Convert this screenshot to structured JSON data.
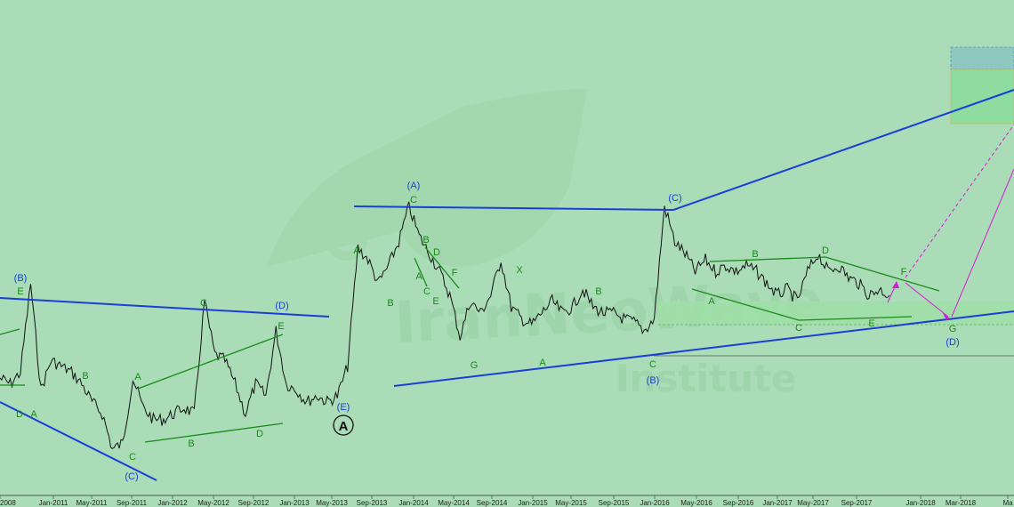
{
  "chart_data": {
    "type": "line",
    "title": "",
    "xlabel": "",
    "ylabel": "",
    "grid": false,
    "colors": {
      "background": "#a9dcb7",
      "price": "#111111",
      "major_wave": "#1a3fd6",
      "minor_wave": "#1a8a1a",
      "projection": "#d61ad6",
      "target_zone": "#8fdca0",
      "target_zone_top": "#8fc8c0"
    },
    "x_ticks": [
      "2008",
      "Jan-2011",
      "May-2011",
      "Sep-2011",
      "Jan-2012",
      "May-2012",
      "Sep-2012",
      "Jan-2013",
      "May-2013",
      "Sep-2013",
      "Jan-2014",
      "May-2014",
      "Sep-2014",
      "Jan-2015",
      "May-2015",
      "Sep-2015",
      "Jan-2016",
      "May-2016",
      "Sep-2016",
      "Jan-2017",
      "May-2017",
      "Sep-2017",
      "Jan-2018",
      "Mar-2018",
      "Ma"
    ],
    "price_path": [
      {
        "x": "Sep-2010",
        "y": 0.42
      },
      {
        "x": "Oct-2010",
        "y": 0.4
      },
      {
        "x": "Nov-2010",
        "y": 0.44
      },
      {
        "x": "Dec-2010",
        "y": 0.74
      },
      {
        "x": "Jan-2011",
        "y": 0.38
      },
      {
        "x": "Feb-2011",
        "y": 0.48
      },
      {
        "x": "Mar-2011",
        "y": 0.46
      },
      {
        "x": "Apr-2011",
        "y": 0.44
      },
      {
        "x": "May-2011",
        "y": 0.4
      },
      {
        "x": "Jun-2011",
        "y": 0.34
      },
      {
        "x": "Jul-2011",
        "y": 0.3
      },
      {
        "x": "Aug-2011",
        "y": 0.18
      },
      {
        "x": "Sep-2011",
        "y": 0.2
      },
      {
        "x": "Oct-2011",
        "y": 0.42
      },
      {
        "x": "Nov-2011",
        "y": 0.32
      },
      {
        "x": "Dec-2011",
        "y": 0.28
      },
      {
        "x": "Jan-2012",
        "y": 0.28
      },
      {
        "x": "Feb-2012",
        "y": 0.3
      },
      {
        "x": "Mar-2012",
        "y": 0.32
      },
      {
        "x": "Apr-2012",
        "y": 0.3
      },
      {
        "x": "May-2012",
        "y": 0.68
      },
      {
        "x": "Jun-2012",
        "y": 0.5
      },
      {
        "x": "Jul-2012",
        "y": 0.48
      },
      {
        "x": "Aug-2012",
        "y": 0.4
      },
      {
        "x": "Sep-2012",
        "y": 0.3
      },
      {
        "x": "Oct-2012",
        "y": 0.4
      },
      {
        "x": "Nov-2012",
        "y": 0.36
      },
      {
        "x": "Dec-2012",
        "y": 0.58
      },
      {
        "x": "Jan-2013",
        "y": 0.4
      },
      {
        "x": "Feb-2013",
        "y": 0.38
      },
      {
        "x": "Mar-2013",
        "y": 0.34
      },
      {
        "x": "Apr-2013",
        "y": 0.36
      },
      {
        "x": "May-2013",
        "y": 0.34
      },
      {
        "x": "Jun-2013",
        "y": 0.36
      },
      {
        "x": "Jul-2013",
        "y": 0.46
      },
      {
        "x": "Aug-2013",
        "y": 0.86
      },
      {
        "x": "Sep-2013",
        "y": 0.82
      },
      {
        "x": "Oct-2013",
        "y": 0.74
      },
      {
        "x": "Nov-2013",
        "y": 0.8
      },
      {
        "x": "Dec-2013",
        "y": 0.88
      },
      {
        "x": "Jan-2014",
        "y": 1.0
      },
      {
        "x": "Feb-2014",
        "y": 0.9
      },
      {
        "x": "Mar-2014",
        "y": 0.84
      },
      {
        "x": "Apr-2014",
        "y": 0.78
      },
      {
        "x": "May-2014",
        "y": 0.7
      },
      {
        "x": "Jun-2014",
        "y": 0.56
      },
      {
        "x": "Jul-2014",
        "y": 0.68
      },
      {
        "x": "Aug-2014",
        "y": 0.64
      },
      {
        "x": "Sep-2014",
        "y": 0.7
      },
      {
        "x": "Oct-2014",
        "y": 0.82
      },
      {
        "x": "Nov-2014",
        "y": 0.66
      },
      {
        "x": "Dec-2014",
        "y": 0.62
      },
      {
        "x": "Jan-2015",
        "y": 0.6
      },
      {
        "x": "Feb-2015",
        "y": 0.64
      },
      {
        "x": "Mar-2015",
        "y": 0.68
      },
      {
        "x": "Apr-2015",
        "y": 0.64
      },
      {
        "x": "May-2015",
        "y": 0.66
      },
      {
        "x": "Jun-2015",
        "y": 0.72
      },
      {
        "x": "Jul-2015",
        "y": 0.66
      },
      {
        "x": "Aug-2015",
        "y": 0.64
      },
      {
        "x": "Sep-2015",
        "y": 0.64
      },
      {
        "x": "Oct-2015",
        "y": 0.62
      },
      {
        "x": "Nov-2015",
        "y": 0.61
      },
      {
        "x": "Dec-2015",
        "y": 0.58
      },
      {
        "x": "Jan-2016",
        "y": 0.62
      },
      {
        "x": "Feb-2016",
        "y": 1.0
      },
      {
        "x": "Mar-2016",
        "y": 0.88
      },
      {
        "x": "Apr-2016",
        "y": 0.84
      },
      {
        "x": "May-2016",
        "y": 0.78
      },
      {
        "x": "Jun-2016",
        "y": 0.82
      },
      {
        "x": "Jul-2016",
        "y": 0.78
      },
      {
        "x": "Aug-2016",
        "y": 0.8
      },
      {
        "x": "Sep-2016",
        "y": 0.78
      },
      {
        "x": "Oct-2016",
        "y": 0.8
      },
      {
        "x": "Nov-2016",
        "y": 0.78
      },
      {
        "x": "Dec-2016",
        "y": 0.74
      },
      {
        "x": "Jan-2017",
        "y": 0.7
      },
      {
        "x": "Feb-2017",
        "y": 0.72
      },
      {
        "x": "Mar-2017",
        "y": 0.68
      },
      {
        "x": "Apr-2017",
        "y": 0.78
      },
      {
        "x": "May-2017",
        "y": 0.84
      },
      {
        "x": "Jun-2017",
        "y": 0.78
      },
      {
        "x": "Jul-2017",
        "y": 0.8
      },
      {
        "x": "Aug-2017",
        "y": 0.76
      },
      {
        "x": "Sep-2017",
        "y": 0.74
      },
      {
        "x": "Oct-2017",
        "y": 0.7
      },
      {
        "x": "Nov-2017",
        "y": 0.72
      },
      {
        "x": "Dec-2017",
        "y": 0.7
      }
    ],
    "wave_labels": [
      {
        "text": "(B)",
        "kind": "major"
      },
      {
        "text": "E",
        "kind": "minor"
      },
      {
        "text": "D",
        "kind": "minor"
      },
      {
        "text": "A",
        "kind": "minor"
      },
      {
        "text": "B",
        "kind": "minor"
      },
      {
        "text": "A",
        "kind": "minor"
      },
      {
        "text": "C",
        "kind": "minor"
      },
      {
        "text": "(C)",
        "kind": "major"
      },
      {
        "text": "B",
        "kind": "minor"
      },
      {
        "text": "C",
        "kind": "minor"
      },
      {
        "text": "D",
        "kind": "minor"
      },
      {
        "text": "E",
        "kind": "minor"
      },
      {
        "text": "(D)",
        "kind": "major"
      },
      {
        "text": "(E)",
        "kind": "major"
      },
      {
        "text": "A",
        "kind": "minor"
      },
      {
        "text": "B",
        "kind": "minor"
      },
      {
        "text": "(A)",
        "kind": "major"
      },
      {
        "text": "C",
        "kind": "minor"
      },
      {
        "text": "B",
        "kind": "minor"
      },
      {
        "text": "D",
        "kind": "minor"
      },
      {
        "text": "A",
        "kind": "minor"
      },
      {
        "text": "F",
        "kind": "minor"
      },
      {
        "text": "C",
        "kind": "minor"
      },
      {
        "text": "E",
        "kind": "minor"
      },
      {
        "text": "G",
        "kind": "minor"
      },
      {
        "text": "X",
        "kind": "minor"
      },
      {
        "text": "A",
        "kind": "minor"
      },
      {
        "text": "B",
        "kind": "minor"
      },
      {
        "text": "(C)",
        "kind": "major"
      },
      {
        "text": "C",
        "kind": "minor"
      },
      {
        "text": "(B)",
        "kind": "major"
      },
      {
        "text": "B",
        "kind": "minor"
      },
      {
        "text": "A",
        "kind": "minor"
      },
      {
        "text": "D",
        "kind": "minor"
      },
      {
        "text": "C",
        "kind": "minor"
      },
      {
        "text": "E",
        "kind": "minor"
      },
      {
        "text": "F",
        "kind": "minor"
      },
      {
        "text": "G",
        "kind": "minor"
      },
      {
        "text": "(D)",
        "kind": "major"
      }
    ],
    "cycle_label": "A",
    "watermark": {
      "line1": "IranNeoWave",
      "line2": "Institute"
    }
  }
}
